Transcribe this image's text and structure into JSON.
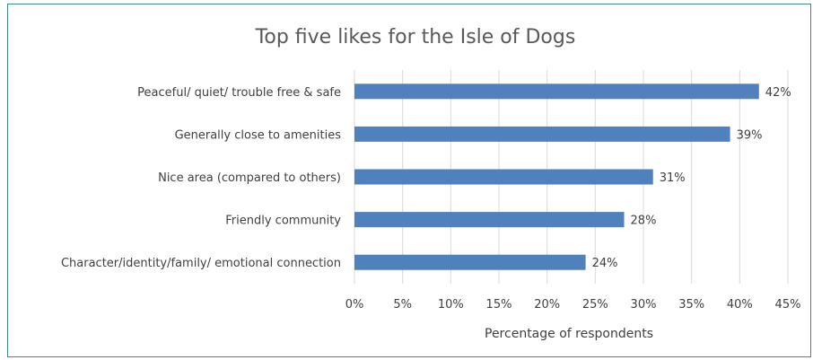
{
  "chart_data": {
    "type": "bar",
    "orientation": "horizontal",
    "title": "Top five likes for the Isle of Dogs",
    "xlabel": "Percentage of respondents",
    "ylabel": "",
    "categories": [
      "Peaceful/ quiet/ trouble free & safe",
      "Generally close to amenities",
      "Nice area (compared to others)",
      "Friendly community",
      "Character/identity/family/ emotional connection"
    ],
    "values": [
      42,
      39,
      31,
      28,
      24
    ],
    "data_labels": [
      "42%",
      "39%",
      "31%",
      "28%",
      "24%"
    ],
    "xlim": [
      0,
      45
    ],
    "x_ticks": [
      "0%",
      "5%",
      "10%",
      "15%",
      "20%",
      "25%",
      "30%",
      "35%",
      "40%",
      "45%"
    ],
    "x_tick_values": [
      0,
      5,
      10,
      15,
      20,
      25,
      30,
      35,
      40,
      45
    ],
    "grid": "vertical",
    "legend": "none",
    "bar_color": "#4f81bd",
    "grid_color": "#d9d9d9"
  }
}
